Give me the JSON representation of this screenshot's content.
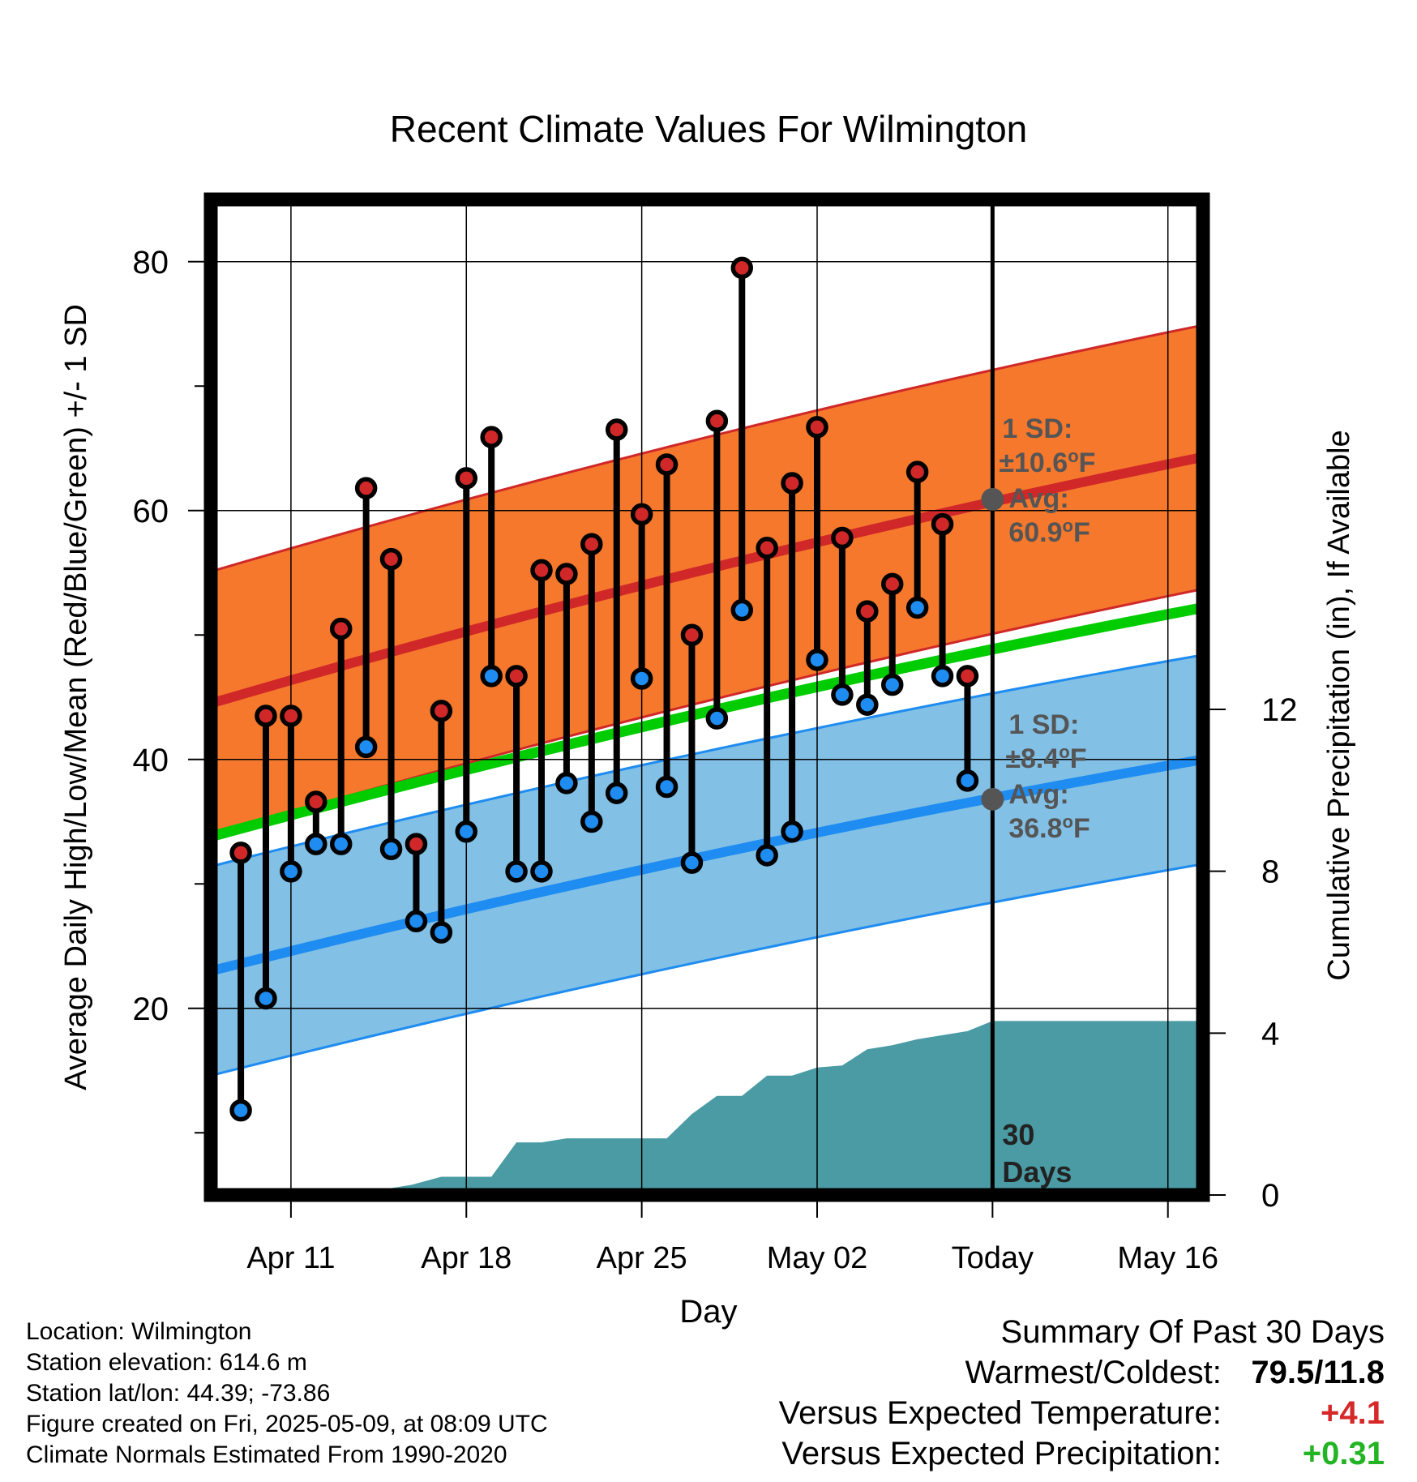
{
  "chart_data": {
    "type": "line",
    "title": "Recent Climate Values For Wilmington",
    "xlabel": "Day",
    "ylabel_left": "Average Daily High/Low/Mean (Red/Blue/Green) +/- 1 SD",
    "ylabel_right": "Cumulative Precipitation (in), If Available",
    "x_tick_labels": [
      "Apr 11",
      "Apr 18",
      "Apr 25",
      "May 02",
      "Today",
      "May 16"
    ],
    "x_tick_days": [
      11,
      18,
      25,
      32,
      39,
      46
    ],
    "x_range": [
      7.8,
      47.4
    ],
    "y_left_range": [
      5,
      85
    ],
    "y_left_ticks": [
      20,
      40,
      60,
      80
    ],
    "y_left_minor_ticks": [
      10,
      30,
      50,
      70
    ],
    "y_right_range": [
      0,
      24.6
    ],
    "y_right_ticks": [
      0,
      4,
      8,
      12
    ],
    "today_day": 39,
    "today_label": "30 Days",
    "grid": true,
    "observed_days": [
      9,
      10,
      11,
      12,
      13,
      14,
      15,
      16,
      17,
      18,
      19,
      20,
      21,
      22,
      23,
      24,
      25,
      26,
      27,
      28,
      29,
      30,
      31,
      32,
      33,
      34,
      35,
      36,
      37,
      38
    ],
    "observed_high": [
      32.5,
      43.5,
      43.5,
      36.6,
      50.5,
      61.8,
      56.1,
      33.2,
      43.9,
      62.6,
      65.9,
      46.7,
      55.2,
      54.9,
      57.3,
      66.5,
      59.7,
      63.7,
      50.0,
      67.2,
      79.5,
      57.0,
      62.2,
      66.7,
      57.8,
      51.9,
      54.1,
      63.1,
      58.9,
      46.7
    ],
    "observed_low": [
      11.8,
      20.8,
      31.0,
      33.2,
      33.2,
      41.0,
      32.8,
      27.0,
      26.1,
      34.2,
      46.7,
      31.0,
      31.0,
      38.1,
      35.0,
      37.3,
      46.5,
      37.8,
      31.7,
      43.3,
      52.0,
      32.3,
      34.2,
      48.0,
      45.2,
      44.4,
      46.0,
      52.2,
      46.7,
      38.3
    ],
    "normal_high_mean": {
      "x": [
        7.8,
        47.4
      ],
      "y_start": 44.5,
      "y_end": 64.3,
      "sd": 10.6
    },
    "normal_low_mean": {
      "x": [
        7.8,
        47.4
      ],
      "y_start": 23.0,
      "y_end": 40.0,
      "sd": 8.4
    },
    "normal_mean": {
      "x": [
        7.8,
        47.4
      ],
      "y_start": 33.8,
      "y_end": 52.2
    },
    "today_high_avg": 60.9,
    "today_low_avg": 36.8,
    "precip_days": [
      7.8,
      11.6,
      12.8,
      13.8,
      14.8,
      15.8,
      17,
      18,
      19,
      20,
      21,
      22,
      23,
      24,
      25,
      26,
      27,
      28,
      29,
      30,
      31,
      32,
      33,
      34,
      35,
      36,
      37,
      38,
      39,
      47.4
    ],
    "precip_cum": [
      0,
      0,
      0.1,
      0.1,
      0.15,
      0.25,
      0.45,
      0.45,
      0.45,
      1.3,
      1.3,
      1.4,
      1.4,
      1.4,
      1.4,
      1.4,
      2.0,
      2.45,
      2.45,
      2.95,
      2.95,
      3.15,
      3.2,
      3.6,
      3.7,
      3.85,
      3.95,
      4.05,
      4.3,
      4.3
    ],
    "colors": {
      "high_band": "#f5782d",
      "high_line": "#d02828",
      "low_band": "#82c0e6",
      "low_line": "#1e8cf0",
      "mean_line": "#00cc00",
      "precip": "#4a9ba4",
      "annotation": "#555555"
    },
    "annotations": {
      "high_sd_label": "1 SD:",
      "high_sd_value": "±10.6",
      "high_avg_label": "Avg:",
      "high_avg_value": "60.9",
      "low_sd_label": "1 SD:",
      "low_sd_value": "±8.4",
      "low_avg_label": "Avg:",
      "low_avg_value": "36.8",
      "degree_unit": "o",
      "temp_unit": "F"
    }
  },
  "info": {
    "location": "Location: Wilmington",
    "elevation": "Station elevation: 614.6 m",
    "latlon": "Station lat/lon: 44.39; -73.86",
    "created": "Figure created on Fri, 2025-05-09, at 08:09 UTC",
    "normals": "Climate Normals Estimated From 1990-2020"
  },
  "summary": {
    "heading": "Summary Of Past 30 Days",
    "warm_cold_label": "Warmest/Coldest:",
    "warm_cold_value": "79.5/11.8",
    "temp_label": "Versus Expected Temperature:",
    "temp_value": "+4.1",
    "precip_label": "Versus Expected Precipitation:",
    "precip_value": "+0.31"
  }
}
